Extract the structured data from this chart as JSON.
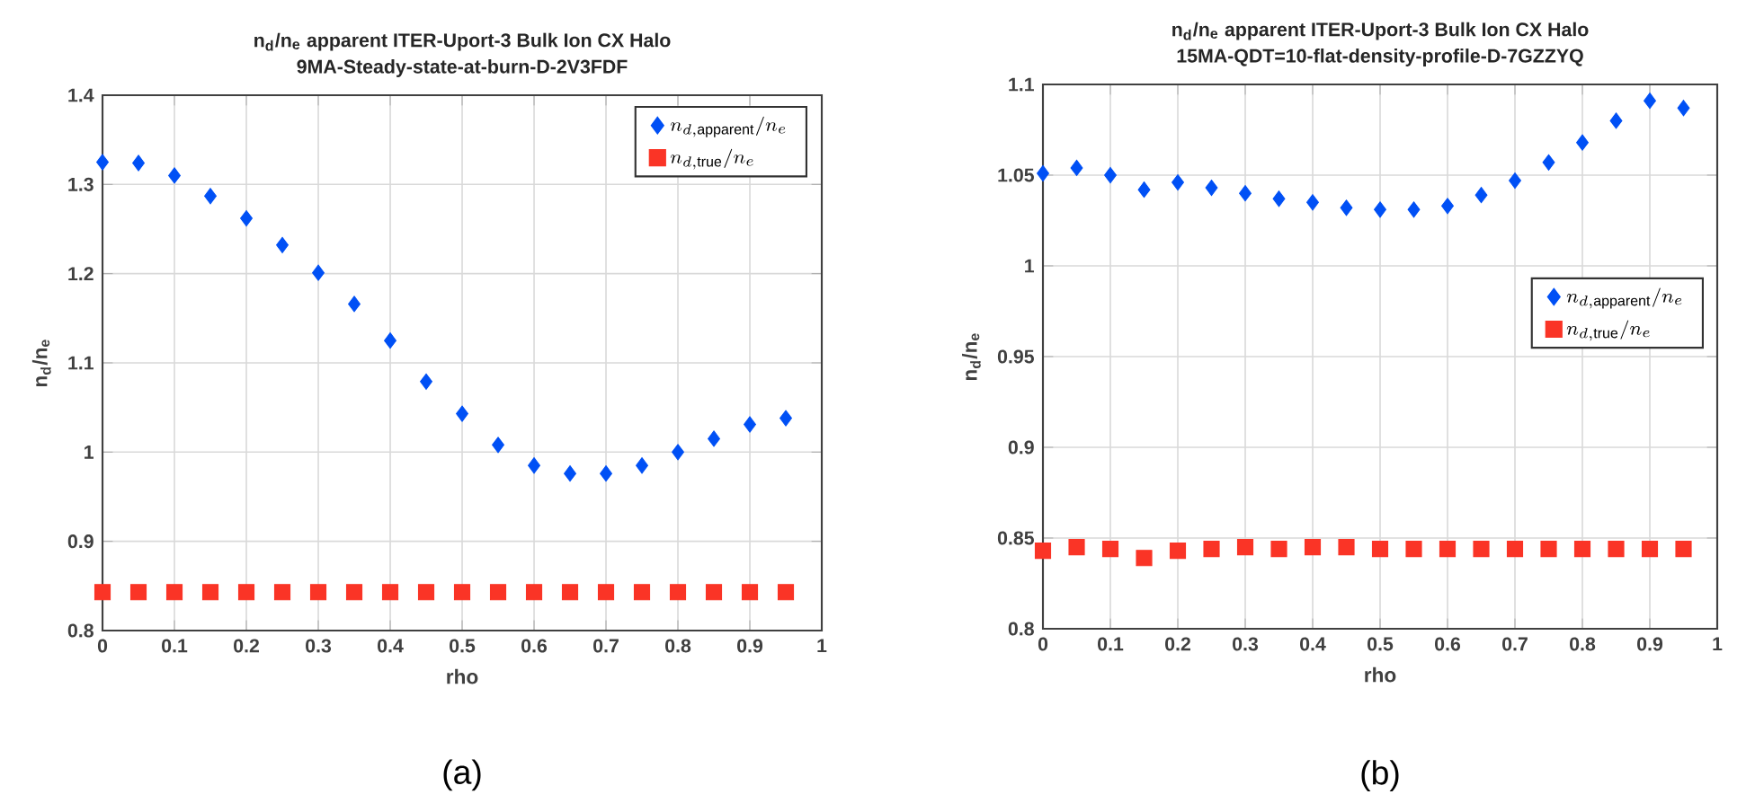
{
  "chart_data": [
    {
      "type": "scatter",
      "title": "n$_{d}$/n$_{e}$  apparent ITER-Uport-3  Bulk Ion CX Halo",
      "subtitle": "9MA-Steady-state-at-burn-D-2V3FDF",
      "xlabel": "rho",
      "ylabel": "n$_{d}$/n$_{e}$",
      "annotations": [
        "(a)"
      ],
      "x": [
        0,
        0.05,
        0.1,
        0.15,
        0.2,
        0.25,
        0.3,
        0.35,
        0.4,
        0.45,
        0.5,
        0.55,
        0.6,
        0.65,
        0.7,
        0.75,
        0.8,
        0.85,
        0.9,
        0.95
      ],
      "series": [
        {
          "name": "n_{d,\\mathrm{apparent}}/n_{e}",
          "color": "#0050f5",
          "marker": "diamond",
          "values": [
            1.325,
            1.324,
            1.31,
            1.287,
            1.262,
            1.232,
            1.201,
            1.166,
            1.125,
            1.079,
            1.043,
            1.008,
            0.985,
            0.976,
            0.976,
            0.985,
            1.0,
            1.015,
            1.031,
            1.038
          ]
        },
        {
          "name": "n_{d,\\mathrm{true}}/n_{e}",
          "color": "#fa3426",
          "marker": "square",
          "values": [
            0.843,
            0.843,
            0.843,
            0.843,
            0.843,
            0.843,
            0.843,
            0.843,
            0.843,
            0.843,
            0.843,
            0.843,
            0.843,
            0.843,
            0.843,
            0.843,
            0.843,
            0.843,
            0.843,
            0.843
          ]
        }
      ],
      "xlim": [
        0,
        1
      ],
      "xticks": [
        0,
        0.1,
        0.2,
        0.3,
        0.4,
        0.5,
        0.6,
        0.7,
        0.8,
        0.9,
        1
      ],
      "ylim": [
        0.8,
        1.4
      ],
      "yticks": [
        0.8,
        0.9,
        1,
        1.1,
        1.2,
        1.3,
        1.4
      ],
      "grid": true,
      "legend": "top right"
    },
    {
      "type": "scatter",
      "title": "n$_{d}$/n$_{e}$  apparent ITER-Uport-3  Bulk Ion CX Halo",
      "subtitle": "15MA-QDT=10-flat-density-profile-D-7GZZYQ",
      "xlabel": "rho",
      "ylabel": "n$_{d}$/n$_{e}$",
      "annotations": [
        "(b)"
      ],
      "x": [
        0,
        0.05,
        0.1,
        0.15,
        0.2,
        0.25,
        0.3,
        0.35,
        0.4,
        0.45,
        0.5,
        0.55,
        0.6,
        0.65,
        0.7,
        0.75,
        0.8,
        0.85,
        0.9,
        0.95
      ],
      "series": [
        {
          "name": "n_{d,\\mathrm{apparent}}/n_{e}",
          "color": "#0050f5",
          "marker": "diamond",
          "values": [
            1.051,
            1.054,
            1.05,
            1.042,
            1.046,
            1.043,
            1.04,
            1.037,
            1.035,
            1.032,
            1.031,
            1.031,
            1.033,
            1.039,
            1.047,
            1.057,
            1.068,
            1.08,
            1.091,
            1.087
          ]
        },
        {
          "name": "n_{d,\\mathrm{true}}/n_{e}",
          "color": "#fa3426",
          "marker": "square",
          "values": [
            0.843,
            0.845,
            0.844,
            0.839,
            0.843,
            0.844,
            0.845,
            0.844,
            0.845,
            0.845,
            0.844,
            0.844,
            0.844,
            0.844,
            0.844,
            0.844,
            0.844,
            0.844,
            0.844,
            0.844
          ]
        }
      ],
      "xlim": [
        0,
        1
      ],
      "xticks": [
        0,
        0.1,
        0.2,
        0.3,
        0.4,
        0.5,
        0.6,
        0.7,
        0.8,
        0.9,
        1
      ],
      "ylim": [
        0.8,
        1.1
      ],
      "yticks": [
        0.8,
        0.85,
        0.9,
        0.95,
        1,
        1.05,
        1.1
      ],
      "grid": true,
      "legend": "right"
    }
  ]
}
